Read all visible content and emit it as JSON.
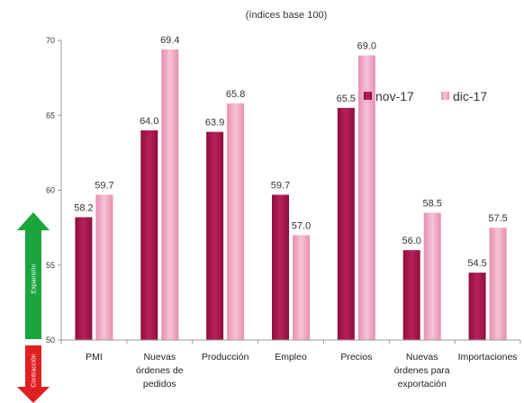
{
  "chart_data": {
    "type": "bar",
    "subtitle": "(índices base 100)",
    "categories": [
      [
        "PMI"
      ],
      [
        "Nuevas",
        "órdenes de",
        "pedidos"
      ],
      [
        "Producción"
      ],
      [
        "Empleo"
      ],
      [
        "Precios"
      ],
      [
        "Nuevas",
        "órdenes para",
        "exportación"
      ],
      [
        "Importaciones"
      ]
    ],
    "series": [
      {
        "name": "nov-17",
        "color": "#a8174e",
        "values": [
          58.2,
          64.0,
          63.9,
          59.7,
          65.5,
          56.0,
          54.5
        ],
        "labels": [
          "58.2",
          "64.0",
          "63.9",
          "59.7",
          "65.5",
          "56.0",
          "54.5"
        ]
      },
      {
        "name": "dic-17",
        "color": "#f0a8c4",
        "values": [
          59.7,
          69.4,
          65.8,
          57.0,
          69.0,
          58.5,
          57.5
        ],
        "labels": [
          "59.7",
          "69.4",
          "65.8",
          "57.0",
          "69.0",
          "58.5",
          "57.5"
        ]
      }
    ],
    "ylim": [
      50,
      70
    ],
    "yticks": [
      50,
      55,
      60,
      65,
      70
    ],
    "legend_position": "top-right",
    "grid": false
  },
  "indicators": {
    "expansion_label": "Expansión",
    "expansion_color": "#1aa63c",
    "contraction_label": "Contracción",
    "contraction_color": "#e02020"
  }
}
